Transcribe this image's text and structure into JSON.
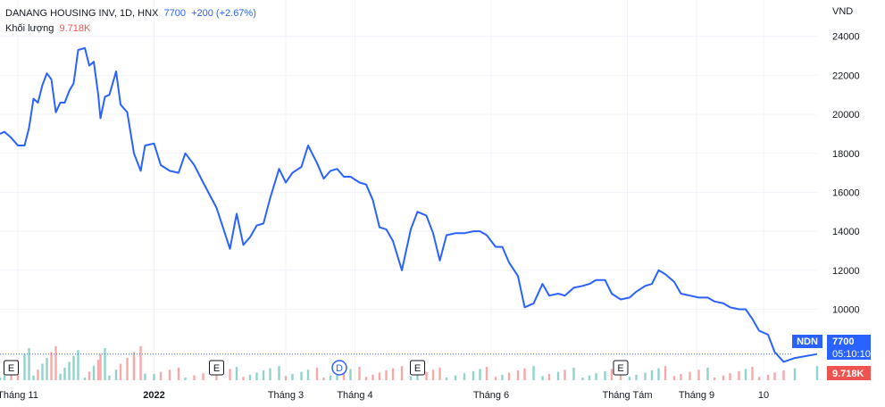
{
  "legend": {
    "title": "DANANG HOUSING INV, 1D, HNX",
    "price": "7700",
    "change": "+200 (+2.67%)",
    "volume_label": "Khối lượng",
    "volume_value": "9.718K"
  },
  "axis_unit": "VND",
  "price_label": {
    "symbol": "NDN",
    "price": "7700",
    "countdown": "05:10:10"
  },
  "volume_label_value": "9.718K",
  "events": [
    {
      "letter": "E",
      "date": "2021-10-29"
    },
    {
      "letter": "E",
      "date": "2022-01-29"
    },
    {
      "letter": "D",
      "date": "2022-03-25"
    },
    {
      "letter": "E",
      "date": "2022-04-29"
    },
    {
      "letter": "E",
      "date": "2022-07-29"
    }
  ],
  "colors": {
    "line": "#2962ff",
    "up": "#26a69a",
    "down": "#ef5350",
    "grid": "#f0f3fa",
    "text": "#131722"
  },
  "chart_data": {
    "type": "line",
    "title": "DANANG HOUSING INV, 1D, HNX",
    "xlabel": "",
    "ylabel": "VND",
    "ylim": [
      5900,
      24400
    ],
    "yticks": [
      10000,
      12000,
      14000,
      16000,
      18000,
      20000,
      22000,
      24000
    ],
    "xlim": [
      "2021-10-24",
      "2022-10-25"
    ],
    "xticks": [
      {
        "label": "Tháng 11",
        "date": "2021-11-01"
      },
      {
        "label": "2022",
        "date": "2022-01-01"
      },
      {
        "label": "Tháng 3",
        "date": "2022-03-01"
      },
      {
        "label": "Tháng 4",
        "date": "2022-04-01"
      },
      {
        "label": "Tháng 6",
        "date": "2022-06-01"
      },
      {
        "label": "Tháng Tám",
        "date": "2022-08-01"
      },
      {
        "label": "Tháng 9",
        "date": "2022-09-01"
      },
      {
        "label": "10",
        "date": "2022-10-01"
      }
    ],
    "last_price": 7700,
    "series": [
      {
        "points": [
          [
            "2021-10-24",
            19000
          ],
          [
            "2021-10-26",
            19100
          ],
          [
            "2021-10-29",
            18800
          ],
          [
            "2021-11-01",
            18400
          ],
          [
            "2021-11-04",
            18400
          ],
          [
            "2021-11-06",
            19300
          ],
          [
            "2021-11-08",
            20800
          ],
          [
            "2021-11-10",
            20600
          ],
          [
            "2021-11-12",
            21500
          ],
          [
            "2021-11-14",
            22100
          ],
          [
            "2021-11-16",
            21800
          ],
          [
            "2021-11-18",
            20100
          ],
          [
            "2021-11-20",
            20600
          ],
          [
            "2021-11-22",
            20600
          ],
          [
            "2021-11-24",
            21200
          ],
          [
            "2021-11-26",
            21600
          ],
          [
            "2021-11-28",
            23300
          ],
          [
            "2021-12-01",
            23400
          ],
          [
            "2021-12-03",
            22500
          ],
          [
            "2021-12-05",
            22700
          ],
          [
            "2021-12-07",
            21000
          ],
          [
            "2021-12-08",
            19800
          ],
          [
            "2021-12-10",
            20900
          ],
          [
            "2021-12-12",
            21000
          ],
          [
            "2021-12-15",
            22200
          ],
          [
            "2021-12-17",
            20500
          ],
          [
            "2021-12-20",
            20100
          ],
          [
            "2021-12-23",
            18000
          ],
          [
            "2021-12-26",
            17100
          ],
          [
            "2021-12-28",
            18400
          ],
          [
            "2022-01-01",
            18500
          ],
          [
            "2022-01-04",
            17400
          ],
          [
            "2022-01-08",
            17100
          ],
          [
            "2022-01-12",
            17000
          ],
          [
            "2022-01-15",
            18000
          ],
          [
            "2022-01-19",
            17400
          ],
          [
            "2022-01-23",
            16500
          ],
          [
            "2022-01-29",
            15200
          ],
          [
            "2022-02-04",
            13100
          ],
          [
            "2022-02-07",
            14900
          ],
          [
            "2022-02-10",
            13300
          ],
          [
            "2022-02-13",
            13700
          ],
          [
            "2022-02-16",
            14300
          ],
          [
            "2022-02-19",
            14400
          ],
          [
            "2022-02-22",
            15700
          ],
          [
            "2022-02-26",
            17200
          ],
          [
            "2022-03-01",
            16500
          ],
          [
            "2022-03-04",
            17000
          ],
          [
            "2022-03-08",
            17300
          ],
          [
            "2022-03-11",
            18400
          ],
          [
            "2022-03-15",
            17500
          ],
          [
            "2022-03-18",
            16700
          ],
          [
            "2022-03-21",
            17100
          ],
          [
            "2022-03-24",
            17200
          ],
          [
            "2022-03-27",
            16800
          ],
          [
            "2022-03-30",
            16800
          ],
          [
            "2022-04-03",
            16500
          ],
          [
            "2022-04-06",
            16400
          ],
          [
            "2022-04-09",
            15600
          ],
          [
            "2022-04-12",
            14200
          ],
          [
            "2022-04-15",
            14100
          ],
          [
            "2022-04-18",
            13500
          ],
          [
            "2022-04-22",
            12000
          ],
          [
            "2022-04-26",
            14100
          ],
          [
            "2022-04-29",
            15000
          ],
          [
            "2022-05-03",
            14800
          ],
          [
            "2022-05-06",
            13900
          ],
          [
            "2022-05-09",
            12500
          ],
          [
            "2022-05-12",
            13800
          ],
          [
            "2022-05-16",
            13900
          ],
          [
            "2022-05-20",
            13900
          ],
          [
            "2022-05-24",
            14000
          ],
          [
            "2022-05-27",
            14000
          ],
          [
            "2022-05-30",
            13800
          ],
          [
            "2022-06-03",
            13200
          ],
          [
            "2022-06-06",
            13200
          ],
          [
            "2022-06-09",
            12400
          ],
          [
            "2022-06-13",
            11700
          ],
          [
            "2022-06-16",
            10100
          ],
          [
            "2022-06-20",
            10300
          ],
          [
            "2022-06-24",
            11300
          ],
          [
            "2022-06-27",
            10700
          ],
          [
            "2022-07-01",
            10800
          ],
          [
            "2022-07-04",
            10700
          ],
          [
            "2022-07-08",
            11100
          ],
          [
            "2022-07-12",
            11200
          ],
          [
            "2022-07-15",
            11300
          ],
          [
            "2022-07-18",
            11500
          ],
          [
            "2022-07-22",
            11500
          ],
          [
            "2022-07-25",
            10800
          ],
          [
            "2022-07-29",
            10500
          ],
          [
            "2022-08-02",
            10600
          ],
          [
            "2022-08-05",
            10900
          ],
          [
            "2022-08-09",
            11200
          ],
          [
            "2022-08-12",
            11300
          ],
          [
            "2022-08-15",
            12000
          ],
          [
            "2022-08-18",
            11800
          ],
          [
            "2022-08-22",
            11400
          ],
          [
            "2022-08-25",
            10800
          ],
          [
            "2022-08-29",
            10700
          ],
          [
            "2022-09-02",
            10600
          ],
          [
            "2022-09-06",
            10600
          ],
          [
            "2022-09-09",
            10400
          ],
          [
            "2022-09-13",
            10300
          ],
          [
            "2022-09-16",
            10100
          ],
          [
            "2022-09-20",
            10000
          ],
          [
            "2022-09-23",
            10000
          ],
          [
            "2022-09-26",
            9500
          ],
          [
            "2022-09-29",
            8900
          ],
          [
            "2022-10-03",
            8700
          ],
          [
            "2022-10-06",
            7800
          ],
          [
            "2022-10-10",
            7300
          ],
          [
            "2022-10-15",
            7500
          ],
          [
            "2022-10-25",
            7700
          ]
        ]
      }
    ]
  }
}
